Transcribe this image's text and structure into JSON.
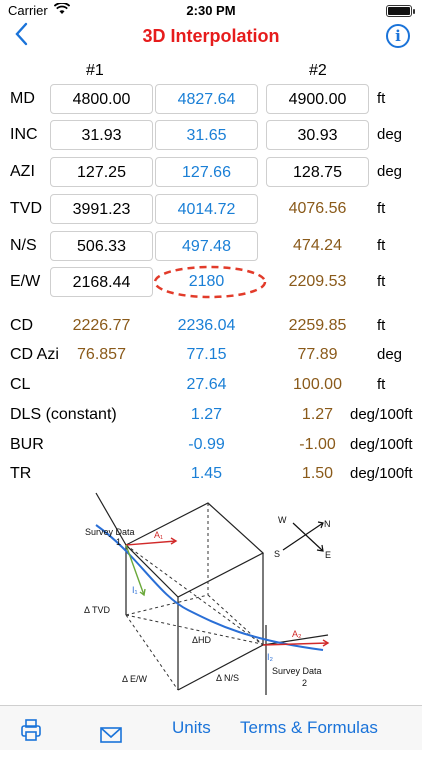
{
  "status": {
    "carrier": "Carrier",
    "time": "2:30 PM"
  },
  "nav": {
    "title": "3D Interpolation",
    "info": "i"
  },
  "columns": {
    "col1": "#1",
    "col3": "#2"
  },
  "inputs": [
    {
      "label": "MD",
      "v1": "4800.00",
      "v2": "4827.64",
      "v3": "4900.00",
      "unit": "ft"
    },
    {
      "label": "INC",
      "v1": "31.93",
      "v2": "31.65",
      "v3": "30.93",
      "unit": "deg"
    },
    {
      "label": "AZI",
      "v1": "127.25",
      "v2": "127.66",
      "v3": "128.75",
      "unit": "deg"
    },
    {
      "label": "TVD",
      "v1": "3991.23",
      "v2": "4014.72",
      "v3": "4076.56",
      "unit": "ft"
    },
    {
      "label": "N/S",
      "v1": "506.33",
      "v2": "497.48",
      "v3": "474.24",
      "unit": "ft"
    },
    {
      "label": "E/W",
      "v1": "2168.44",
      "v2": "2180",
      "v3": "2209.53",
      "unit": "ft"
    }
  ],
  "results": [
    {
      "label": "CD",
      "v1": "2226.77",
      "v2": "2236.04",
      "v3": "2259.85",
      "unit": "ft"
    },
    {
      "label": "CD Azi",
      "v1": "76.857",
      "v2": "77.15",
      "v3": "77.89",
      "unit": "deg"
    },
    {
      "label": "CL",
      "v1": "",
      "v2": "27.64",
      "v3": "100.00",
      "unit": "ft"
    },
    {
      "label": "DLS (constant)",
      "v1": "",
      "v2": "1.27",
      "v3": "1.27",
      "unit": "deg/100ft"
    },
    {
      "label": "BUR",
      "v1": "",
      "v2": "-0.99",
      "v3": "-1.00",
      "unit": "deg/100ft"
    },
    {
      "label": "TR",
      "v1": "",
      "v2": "1.45",
      "v3": "1.50",
      "unit": "deg/100ft"
    }
  ],
  "diagram": {
    "survey1": "Survey Data",
    "pt1": "1",
    "a1": "A₁",
    "i1": "I₁",
    "tvd": "Δ TVD",
    "hd": "ΔHD",
    "ew": "Δ E/W",
    "ns": "Δ N/S",
    "a2": "A₂",
    "i2": "I₂",
    "survey2": "Survey Data",
    "pt2": "2",
    "compass_n": "N",
    "compass_s": "S",
    "compass_e": "E",
    "compass_w": "W"
  },
  "tabs": {
    "units": "Units",
    "terms": "Terms & Formulas"
  }
}
